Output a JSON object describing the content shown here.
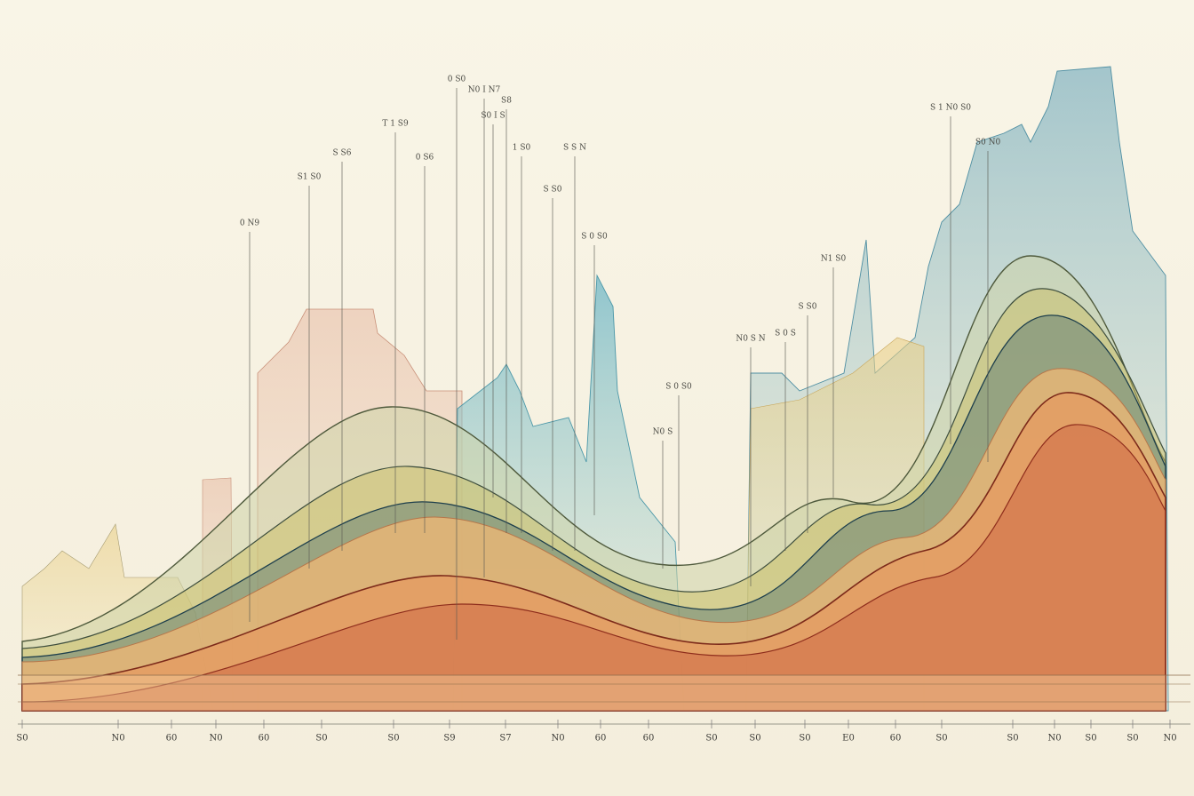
{
  "x_labels": [
    "S0",
    "N0",
    "60",
    "N0",
    "60",
    "S0",
    "S0",
    "S9",
    "S7",
    "N0",
    "60",
    "60",
    "S0",
    "S0",
    "S0",
    "E0",
    "60",
    "S0",
    "S0",
    "N0",
    "S0",
    "S0",
    "N0"
  ],
  "annotations": [
    "0 S0",
    "N0 I N7",
    "S8",
    "S0 I S",
    "T 1 S9",
    "S S6",
    "0 S6",
    "1 S0",
    "S S N",
    "S1 S0",
    "S S0",
    "0 N9",
    "S 0 S0",
    "S 1 N0 S0",
    "N1 S0",
    "S S0",
    "S 0 S",
    "N0 S N",
    "S 0 S0",
    "N0 S",
    "S0 N0"
  ]
}
